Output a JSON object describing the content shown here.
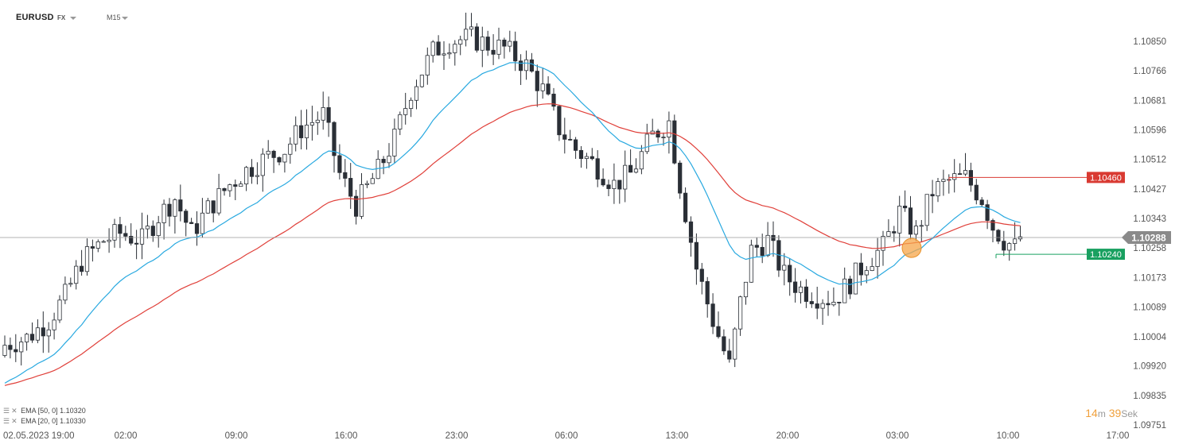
{
  "toolbar": {
    "symbol": "EURUSD",
    "asset_class": "FX",
    "timeframe": "M15"
  },
  "countdown": {
    "minutes": "14",
    "min_unit": "m",
    "seconds": "39",
    "sec_unit": "Sek"
  },
  "indicators": [
    {
      "label": "EMA [50, 0] 1.10320",
      "color": "#e0403a"
    },
    {
      "label": "EMA [20, 0] 1.10330",
      "color": "#29a9e0"
    }
  ],
  "chart_data": {
    "type": "candlestick",
    "instrument": "EURUSD",
    "interval": "M15",
    "ylim": [
      1.09751,
      1.109
    ],
    "y_ticks": [
      "1.10850",
      "1.10766",
      "1.10681",
      "1.10596",
      "1.10512",
      "1.10427",
      "1.10343",
      "1.10258",
      "1.10173",
      "1.10089",
      "1.10004",
      "1.09920",
      "1.09835",
      "1.09751"
    ],
    "x_ticks": [
      "02.05.2023  19:00",
      "02:00",
      "09:00",
      "16:00",
      "23:00",
      "06:00",
      "13:00",
      "20:00",
      "03:00",
      "10:00",
      "17:00"
    ],
    "current_price": {
      "value": 1.10288,
      "label": "1.10288",
      "color": "#8a8a8a"
    },
    "resistance": {
      "value": 1.1046,
      "label": "1.10460",
      "color": "#d93a32"
    },
    "support": {
      "value": 1.1024,
      "label": "1.10240",
      "color": "#19a060"
    },
    "highlight_price": 1.10258,
    "ema_colors": {
      "ema50": "#e0403a",
      "ema20": "#29a9e0"
    },
    "price_path": [
      [
        0,
        1.0998
      ],
      [
        4,
        1.1
      ],
      [
        8,
        1.1005
      ],
      [
        11,
        1.1012
      ],
      [
        14,
        1.1022
      ],
      [
        18,
        1.1028
      ],
      [
        21,
        1.103
      ],
      [
        25,
        1.1028
      ],
      [
        28,
        1.1035
      ],
      [
        31,
        1.104
      ],
      [
        34,
        1.103
      ],
      [
        37,
        1.1037
      ],
      [
        41,
        1.1044
      ],
      [
        44,
        1.1048
      ],
      [
        48,
        1.1052
      ],
      [
        51,
        1.1054
      ],
      [
        54,
        1.106
      ],
      [
        58,
        1.1064
      ],
      [
        61,
        1.1047
      ],
      [
        64,
        1.1038
      ],
      [
        68,
        1.1048
      ],
      [
        71,
        1.1057
      ],
      [
        74,
        1.1071
      ],
      [
        78,
        1.1082
      ],
      [
        81,
        1.1085
      ],
      [
        85,
        1.1086
      ],
      [
        88,
        1.1084
      ],
      [
        91,
        1.1083
      ],
      [
        95,
        1.1078
      ],
      [
        98,
        1.1071
      ],
      [
        101,
        1.106
      ],
      [
        104,
        1.1054
      ],
      [
        108,
        1.1049
      ],
      [
        111,
        1.1044
      ],
      [
        114,
        1.1047
      ],
      [
        118,
        1.1058
      ],
      [
        121,
        1.1062
      ],
      [
        123,
        1.1044
      ],
      [
        126,
        1.102
      ],
      [
        129,
        1.1005
      ],
      [
        132,
        1.0992
      ],
      [
        134,
        1.101
      ],
      [
        136,
        1.1025
      ],
      [
        139,
        1.1028
      ],
      [
        142,
        1.1018
      ],
      [
        145,
        1.1014
      ],
      [
        148,
        1.1012
      ],
      [
        151,
        1.1011
      ],
      [
        154,
        1.1016
      ],
      [
        157,
        1.1022
      ],
      [
        160,
        1.1026
      ],
      [
        163,
        1.1036
      ],
      [
        166,
        1.103
      ],
      [
        169,
        1.1042
      ],
      [
        172,
        1.1045
      ],
      [
        175,
        1.1046
      ],
      [
        178,
        1.104
      ],
      [
        180,
        1.1032
      ],
      [
        182,
        1.1028
      ],
      [
        184,
        1.1026
      ],
      [
        185,
        1.1029
      ]
    ]
  }
}
